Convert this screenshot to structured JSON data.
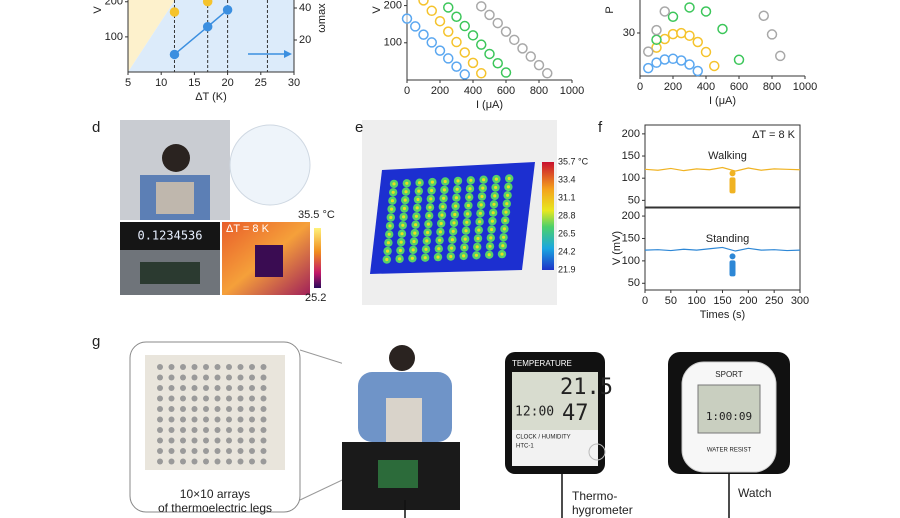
{
  "chart_data": [
    {
      "type": "scatter",
      "xlabel": "ΔT (K)",
      "ylabel": "V",
      "y2label": "ωmax",
      "xlim": [
        5,
        30
      ],
      "xticks": [
        5,
        10,
        15,
        20,
        25,
        30
      ],
      "ylim": [
        0,
        205
      ],
      "yticks": [
        100,
        200
      ],
      "y2lim": [
        0,
        45
      ],
      "y2ticks": [
        20,
        40
      ],
      "vlines": [
        12,
        17,
        20,
        26
      ],
      "marker_fill": true,
      "series": [
        {
          "color": "#3b8fe0",
          "line": true,
          "x": [
            12,
            17,
            20
          ],
          "values": [
            50,
            129,
            177
          ]
        },
        {
          "color": "#f5c32c",
          "axis": "y2",
          "x": [
            12,
            17
          ],
          "values": [
            37.5,
            44
          ]
        }
      ]
    },
    {
      "type": "scatter",
      "xlabel": "I (μA)",
      "ylabel": "V",
      "xlim": [
        0,
        1000
      ],
      "xticks": [
        0,
        200,
        400,
        600,
        800,
        1000
      ],
      "ylim": [
        0,
        215
      ],
      "yticks": [
        100,
        200
      ],
      "marker_fill": false,
      "series": [
        {
          "color": "#5aa7f0",
          "x": [
            0,
            50,
            100,
            150,
            200,
            250,
            300,
            350
          ],
          "values": [
            165,
            144,
            122,
            101,
            79,
            58,
            36,
            15
          ]
        },
        {
          "color": "#f5c32c",
          "x": [
            100,
            150,
            200,
            250,
            300,
            350,
            400,
            450
          ],
          "values": [
            214,
            186,
            158,
            130,
            102,
            74,
            46,
            18
          ]
        },
        {
          "color": "#3cc65a",
          "x": [
            250,
            300,
            350,
            400,
            450,
            500,
            550,
            600
          ],
          "values": [
            195,
            170,
            145,
            120,
            95,
            70,
            45,
            20
          ]
        },
        {
          "color": "#a8a8a8",
          "x": [
            450,
            500,
            550,
            600,
            650,
            700,
            750,
            800,
            850
          ],
          "values": [
            198,
            175,
            153,
            130,
            108,
            85,
            63,
            40,
            18
          ]
        }
      ]
    },
    {
      "type": "scatter",
      "xlabel": "I (μA)",
      "ylabel": "P",
      "xlim": [
        0,
        1000
      ],
      "xticks": [
        0,
        200,
        400,
        600,
        800,
        1000
      ],
      "ylim": [
        0,
        53
      ],
      "yticks": [
        30
      ],
      "marker_fill": false,
      "series": [
        {
          "color": "#5aa7f0",
          "x": [
            50,
            100,
            150,
            200,
            250,
            300,
            350
          ],
          "values": [
            5.5,
            9.3,
            11.5,
            12,
            10.8,
            8,
            3.5
          ]
        },
        {
          "color": "#f5c32c",
          "x": [
            100,
            150,
            200,
            250,
            300,
            350,
            400,
            450
          ],
          "values": [
            19.8,
            25.8,
            29.2,
            29.9,
            28.1,
            23.7,
            16.7,
            7
          ]
        },
        {
          "color": "#3cc65a",
          "x": [
            100,
            200,
            300,
            400,
            500,
            600
          ],
          "values": [
            25.3,
            41.3,
            47.8,
            45,
            32.8,
            11.3
          ]
        },
        {
          "color": "#a8a8a8",
          "x": [
            50,
            100,
            150,
            750,
            800,
            850
          ],
          "values": [
            17,
            32,
            45,
            42,
            29,
            14
          ]
        }
      ]
    },
    {
      "type": "line",
      "ylabel": "V (mV)",
      "annotation": "ΔT = 8 K",
      "label": "Walking",
      "xlim": [
        0,
        300
      ],
      "ylim": [
        35,
        220
      ],
      "yticks": [
        50,
        100,
        150,
        200
      ],
      "x": [
        0,
        25,
        50,
        75,
        100,
        125,
        150,
        175,
        200,
        225,
        250,
        275,
        300
      ],
      "series": [
        {
          "color": "#f0b323",
          "values": [
            120,
            118,
            122,
            117,
            121,
            119,
            124,
            116,
            123,
            118,
            121,
            120,
            119
          ]
        }
      ]
    },
    {
      "type": "line",
      "xlabel": "Times (s)",
      "label": "Standing",
      "xlim": [
        0,
        300
      ],
      "xticks": [
        0,
        50,
        100,
        150,
        200,
        250,
        300
      ],
      "ylim": [
        35,
        218
      ],
      "yticks": [
        50,
        100,
        150,
        200
      ],
      "x": [
        0,
        25,
        50,
        75,
        100,
        125,
        150,
        175,
        200,
        225,
        250,
        275,
        300
      ],
      "series": [
        {
          "color": "#2d87d6",
          "values": [
            124,
            125,
            123,
            126,
            124,
            127,
            130,
            122,
            128,
            124,
            125,
            123,
            124
          ]
        }
      ]
    }
  ],
  "panel_labels": [
    "d",
    "e",
    "f",
    "g"
  ],
  "panel_d": {
    "delta_t": "ΔT = 8 K",
    "scale_max": "35.5 °C",
    "scale_min": "25.2",
    "meter": "0.1234536"
  },
  "panel_e": {
    "colorbar_labels": [
      "35.7 °C",
      "33.4",
      "31.1",
      "28.8",
      "26.5",
      "24.2",
      "21.9"
    ]
  },
  "panel_g": {
    "array_caption": "10×10 arrays of thermoelectric legs",
    "hygrometer_caption": "Thermo-hygrometer",
    "watch_caption": "Watch",
    "hygrometer_top": "TEMPERATURE",
    "hygrometer_temp": "21.5",
    "hygrometer_time": "12:00",
    "hygrometer_humidity": "47",
    "hygrometer_bottom": "CLOCK / HUMIDITY",
    "hygrometer_model": "HTC-1",
    "watch_brand": "SPORT",
    "watch_display": "1:00:09",
    "watch_bottom": "WATER RESIST"
  }
}
